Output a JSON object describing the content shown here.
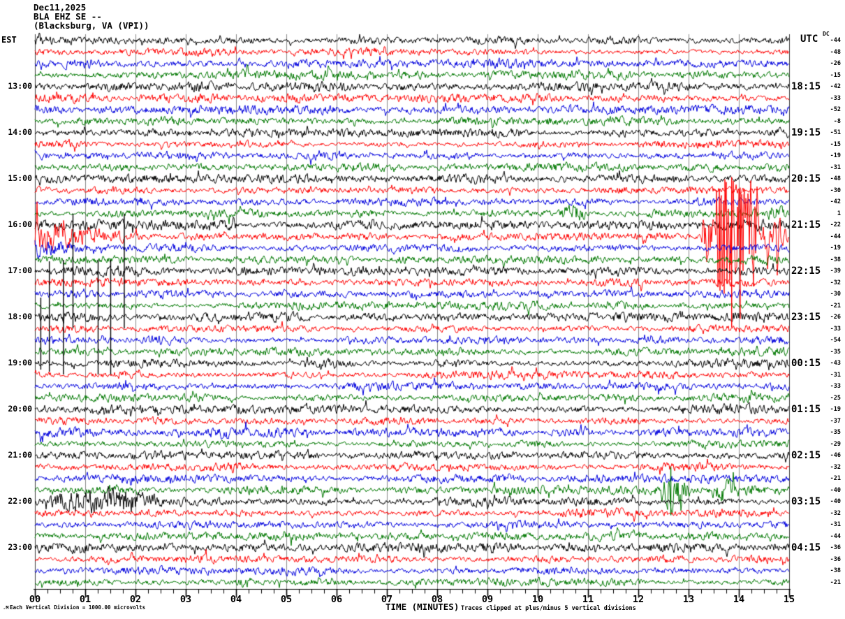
{
  "title": {
    "date": "Dec11,2025",
    "station": "BLA EHZ SE --",
    "location": "(Blacksburg, VA (VPI))"
  },
  "axes": {
    "left_header": "EST",
    "right_header": "UTC",
    "dc_header": "DC",
    "xaxis_title": "TIME (MINUTES)",
    "footnote_left": "Each Vertical Division = 1000.00 microvolts",
    "footnote_right": "Traces clipped at plus/minus 5 vertical divisions",
    "corner_mark": ".M"
  },
  "chart_data": {
    "type": "line",
    "subtype": "helicorder-seismogram",
    "x_range": [
      0,
      15
    ],
    "x_tick_labels": [
      "00",
      "01",
      "02",
      "03",
      "04",
      "05",
      "06",
      "07",
      "08",
      "09",
      "10",
      "11",
      "12",
      "13",
      "14",
      "15"
    ],
    "minutes_per_row": 15,
    "grid": "vertical-minute-lines",
    "colors_cycle": [
      "black",
      "red",
      "blue",
      "green"
    ],
    "palette": {
      "black": "#000000",
      "red": "#fe0000",
      "blue": "#0000dd",
      "green": "#007800",
      "grid": "#8a8a8a",
      "border": "#3c3c3c"
    },
    "rows": [
      {
        "dc": -44,
        "color": "black"
      },
      {
        "dc": -48,
        "color": "red"
      },
      {
        "dc": -26,
        "color": "blue"
      },
      {
        "dc": -15,
        "color": "green"
      },
      {
        "dc": -42,
        "color": "black",
        "est": "13:00",
        "utc": "18:15"
      },
      {
        "dc": -33,
        "color": "red"
      },
      {
        "dc": -52,
        "color": "blue"
      },
      {
        "dc": -8,
        "color": "green"
      },
      {
        "dc": -51,
        "color": "black",
        "est": "14:00",
        "utc": "19:15"
      },
      {
        "dc": -15,
        "color": "red"
      },
      {
        "dc": -19,
        "color": "blue"
      },
      {
        "dc": -31,
        "color": "green"
      },
      {
        "dc": -48,
        "color": "black",
        "est": "15:00",
        "utc": "20:15"
      },
      {
        "dc": -30,
        "color": "red"
      },
      {
        "dc": -42,
        "color": "blue"
      },
      {
        "dc": 1,
        "color": "green"
      },
      {
        "dc": -22,
        "color": "black",
        "est": "16:00",
        "utc": "21:15"
      },
      {
        "dc": -44,
        "color": "red"
      },
      {
        "dc": -19,
        "color": "blue"
      },
      {
        "dc": -38,
        "color": "green"
      },
      {
        "dc": -39,
        "color": "black",
        "est": "17:00",
        "utc": "22:15"
      },
      {
        "dc": -32,
        "color": "red"
      },
      {
        "dc": -30,
        "color": "blue"
      },
      {
        "dc": -21,
        "color": "green"
      },
      {
        "dc": -26,
        "color": "black",
        "est": "18:00",
        "utc": "23:15"
      },
      {
        "dc": -33,
        "color": "red"
      },
      {
        "dc": -54,
        "color": "blue"
      },
      {
        "dc": -35,
        "color": "green"
      },
      {
        "dc": -43,
        "color": "black",
        "est": "19:00",
        "utc": "00:15"
      },
      {
        "dc": -31,
        "color": "red"
      },
      {
        "dc": -33,
        "color": "blue"
      },
      {
        "dc": -25,
        "color": "green"
      },
      {
        "dc": -19,
        "color": "black",
        "est": "20:00",
        "utc": "01:15"
      },
      {
        "dc": -37,
        "color": "red"
      },
      {
        "dc": -35,
        "color": "blue"
      },
      {
        "dc": -29,
        "color": "green"
      },
      {
        "dc": -46,
        "color": "black",
        "est": "21:00",
        "utc": "02:15"
      },
      {
        "dc": -32,
        "color": "red"
      },
      {
        "dc": -21,
        "color": "blue"
      },
      {
        "dc": -40,
        "color": "green"
      },
      {
        "dc": -40,
        "color": "black",
        "est": "22:00",
        "utc": "03:15"
      },
      {
        "dc": -32,
        "color": "red"
      },
      {
        "dc": -31,
        "color": "blue"
      },
      {
        "dc": -44,
        "color": "green"
      },
      {
        "dc": -36,
        "color": "black",
        "est": "23:00",
        "utc": "04:15"
      },
      {
        "dc": -36,
        "color": "red"
      },
      {
        "dc": -38,
        "color": "blue"
      },
      {
        "dc": -21,
        "color": "green"
      }
    ],
    "events": [
      {
        "row": 15,
        "start": 1.9,
        "end": 2.35,
        "amp": 7,
        "shape": "burst"
      },
      {
        "row": 16,
        "start": 10.35,
        "end": 11.05,
        "amp": 9,
        "shape": "burst"
      },
      {
        "row": 16,
        "start": 14.45,
        "end": 15,
        "amp": 8,
        "shape": "burst"
      },
      {
        "row": 17,
        "start": 0,
        "end": 4,
        "amp": 5,
        "shape": "flat"
      },
      {
        "row": 17,
        "start": 13.3,
        "end": 15,
        "amp": 6,
        "shape": "burst"
      },
      {
        "row": 18,
        "start": 0,
        "end": 2.9,
        "amp": 14,
        "shape": "decay"
      },
      {
        "row": 18,
        "start": 13.25,
        "end": 13.55,
        "amp": 30,
        "shape": "burst"
      },
      {
        "row": 18,
        "start": 13.55,
        "end": 14.4,
        "amp": 82,
        "shape": "clipped"
      },
      {
        "row": 18,
        "start": 14.4,
        "end": 15,
        "amp": 22,
        "shape": "burst"
      },
      {
        "row": 19,
        "start": 0,
        "end": 1.8,
        "amp": 8,
        "shape": "decay"
      },
      {
        "row": 19,
        "start": 7.05,
        "end": 7.3,
        "amp": 7,
        "shape": "burst"
      },
      {
        "row": 20,
        "start": 7.1,
        "end": 7.45,
        "amp": 6,
        "shape": "burst"
      },
      {
        "row": 40,
        "start": 12.35,
        "end": 13.45,
        "amp": 19,
        "shape": "burst_peak"
      },
      {
        "row": 40,
        "start": 13.45,
        "end": 15,
        "amp": 11,
        "shape": "decay"
      },
      {
        "row": 41,
        "start": 0,
        "end": 2.8,
        "amp": 13,
        "shape": "burst"
      },
      {
        "row": 48,
        "start": 3.9,
        "end": 4.5,
        "amp": 5.5,
        "shape": "burst"
      }
    ],
    "spikes": [
      {
        "row": 18,
        "min": 13.85,
        "up": 85,
        "down": 130
      },
      {
        "row": 18,
        "min": 14.02,
        "up": 70,
        "down": 118
      },
      {
        "row": 21,
        "min": 0.75,
        "up": 82,
        "down": 82
      },
      {
        "row": 21,
        "min": 1.77,
        "up": 82,
        "down": 82
      },
      {
        "row": 25,
        "min": 0.11,
        "up": 28,
        "down": 75
      },
      {
        "row": 25,
        "min": 0.28,
        "up": 80,
        "down": 78
      },
      {
        "row": 25,
        "min": 0.56,
        "up": 82,
        "down": 82
      },
      {
        "row": 25,
        "min": 1.25,
        "up": 82,
        "down": 82
      },
      {
        "row": 25,
        "min": 1.5,
        "up": 82,
        "down": 82
      },
      {
        "row": 40,
        "min": 12.64,
        "up": 33,
        "down": 36
      }
    ]
  }
}
